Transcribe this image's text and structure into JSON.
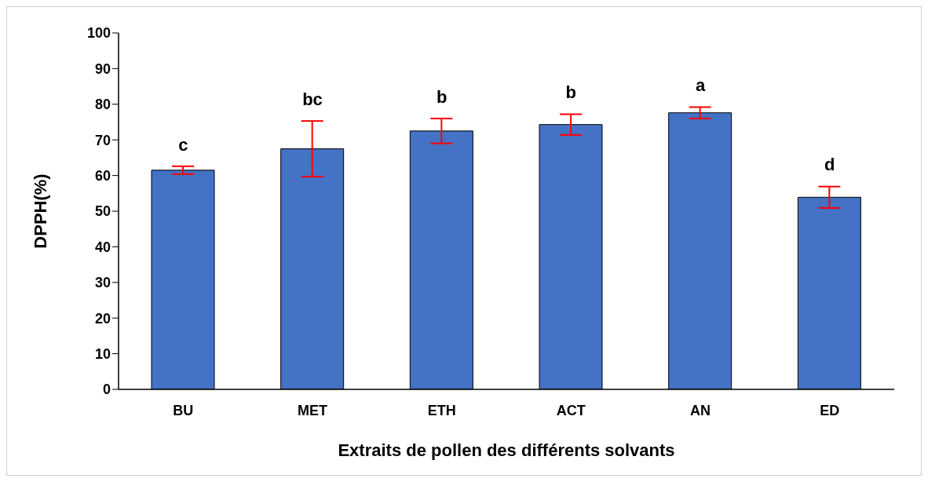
{
  "chart_data": {
    "type": "bar",
    "xlabel": "Extraits de pollen des différents solvants",
    "ylabel": "DPPH(%)",
    "categories": [
      "BU",
      "MET",
      "ETH",
      "ACT",
      "AN",
      "ED"
    ],
    "values": [
      61.5,
      67.5,
      72.5,
      74.3,
      77.6,
      53.9
    ],
    "errors": [
      1.1,
      7.8,
      3.5,
      2.9,
      1.6,
      3.0
    ],
    "color": "#4472c4",
    "ylim": [
      0,
      100
    ],
    "yticks": [
      0,
      10,
      20,
      30,
      40,
      50,
      60,
      70,
      80,
      90,
      100
    ],
    "annotations": [
      {
        "text": "c",
        "x": "BU",
        "y": 61.5
      },
      {
        "text": "bc",
        "x": "MET",
        "y": 67.5
      },
      {
        "text": "b",
        "x": "ETH",
        "y": 72.5
      },
      {
        "text": "b",
        "x": "ACT",
        "y": 74.3
      },
      {
        "text": "a",
        "x": "AN",
        "y": 77.6
      },
      {
        "text": "d",
        "x": "ED",
        "y": 53.9
      }
    ]
  }
}
